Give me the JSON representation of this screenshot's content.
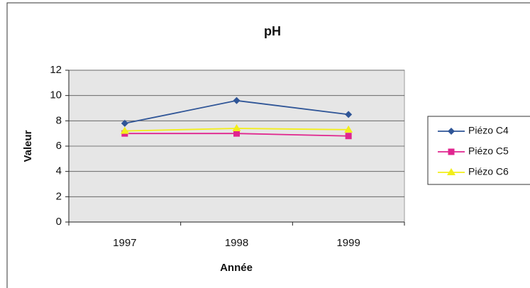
{
  "chart_data": {
    "type": "line",
    "title": "pH",
    "x_label": "Année",
    "y_label": "Valeur",
    "categories": [
      "1997",
      "1998",
      "1999"
    ],
    "series": [
      {
        "name": "Piézo C4",
        "color": "#2f5597",
        "marker": "diamond",
        "values": [
          7.8,
          9.6,
          8.5
        ]
      },
      {
        "name": "Piézo C5",
        "color": "#e0258f",
        "marker": "square",
        "values": [
          7.0,
          7.0,
          6.8
        ]
      },
      {
        "name": "Piézo C6",
        "color": "#f2ee1a",
        "marker": "triangle",
        "values": [
          7.2,
          7.4,
          7.3
        ]
      }
    ],
    "ylim": [
      0,
      12
    ],
    "yticks": [
      0,
      2,
      4,
      6,
      8,
      10,
      12
    ],
    "grid": true,
    "legend": "right"
  }
}
